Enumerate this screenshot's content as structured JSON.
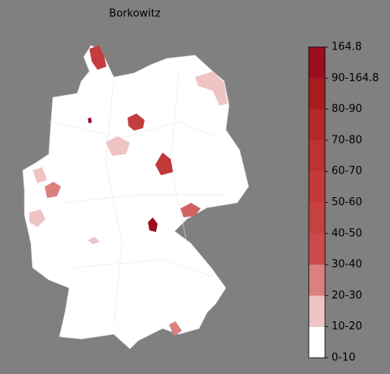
{
  "title": "Borkowitz",
  "colorbar": {
    "labels": [
      "164.8",
      "90-164.8",
      "80-90",
      "70-80",
      "60-70",
      "50-60",
      "40-50",
      "30-40",
      "20-30",
      "10-20",
      "0-10"
    ],
    "colors": [
      "#ffffff",
      "#f0c4c4",
      "#db7f7f",
      "#cd4a4a",
      "#c84141",
      "#c33a3a",
      "#bd3232",
      "#b52828",
      "#aa1c1c",
      "#9c0e1e"
    ]
  }
}
